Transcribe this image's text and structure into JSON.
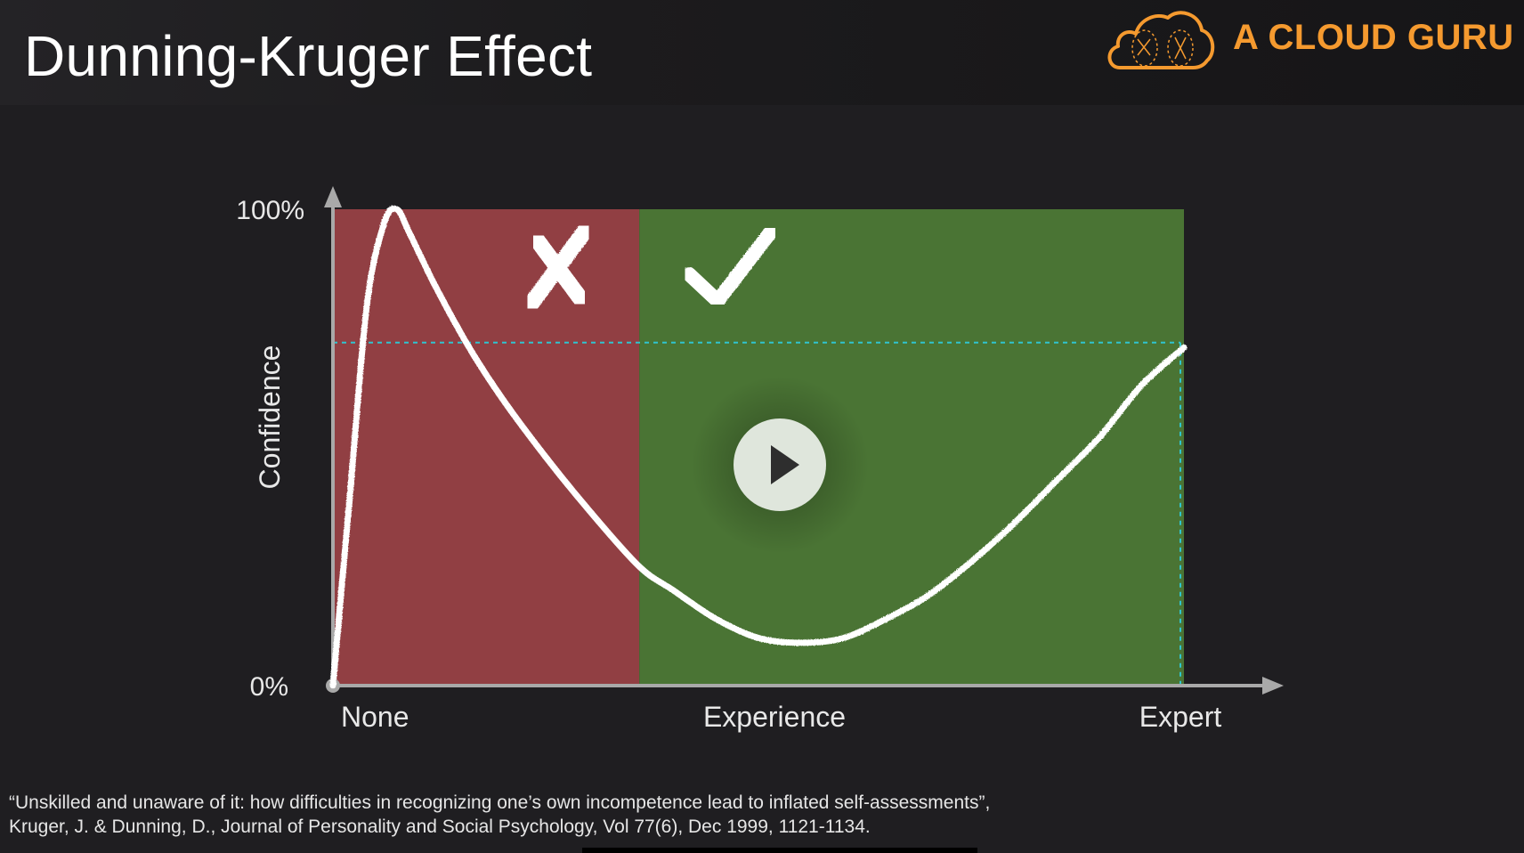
{
  "slide": {
    "title": "Dunning-Kruger Effect"
  },
  "brand": {
    "name": "A CLOUD GURU",
    "icon": "cloud-logo-icon",
    "color": "#f59a2f"
  },
  "colors": {
    "unaware_region": "#913f43",
    "aware_region": "#4a7434",
    "curve": "#ffffff",
    "reference_line": "#2fc4cf",
    "axis": "#a9a9a9"
  },
  "chart_data": {
    "type": "line",
    "xlabel": "Experience",
    "ylabel": "Confidence",
    "x_tick_labels": [
      "None",
      "Experience",
      "Expert"
    ],
    "y_tick_labels": [
      "0%",
      "100%"
    ],
    "xlim": [
      0,
      100
    ],
    "ylim": [
      0,
      100
    ],
    "grid": false,
    "series": [
      {
        "x": [
          0,
          2,
          4,
          6,
          7.5,
          9,
          12,
          16,
          20,
          25,
          30,
          36,
          40,
          45,
          50,
          55,
          60,
          65,
          70,
          75,
          80,
          85,
          90,
          95,
          100
        ],
        "y": [
          0,
          40,
          80,
          97,
          100,
          95,
          84,
          71,
          60,
          48,
          37,
          25,
          20,
          14,
          10,
          9,
          10,
          14,
          19,
          26,
          34,
          43,
          52,
          63,
          71
        ]
      }
    ],
    "reference_line": {
      "y": 72
    },
    "regions": [
      {
        "x_range": [
          0,
          36
        ],
        "marker": "cross-mark-icon"
      },
      {
        "x_range": [
          36,
          100
        ],
        "marker": "check-mark-icon"
      }
    ]
  },
  "player": {
    "play_icon": "play-icon"
  },
  "citation": {
    "line1": "“Unskilled and unaware of it: how difficulties in recognizing one’s own incompetence lead to inflated self-assessments”,",
    "line2": "Kruger, J. & Dunning, D., Journal of Personality and Social Psychology, Vol 77(6), Dec 1999, 1121-1134."
  }
}
